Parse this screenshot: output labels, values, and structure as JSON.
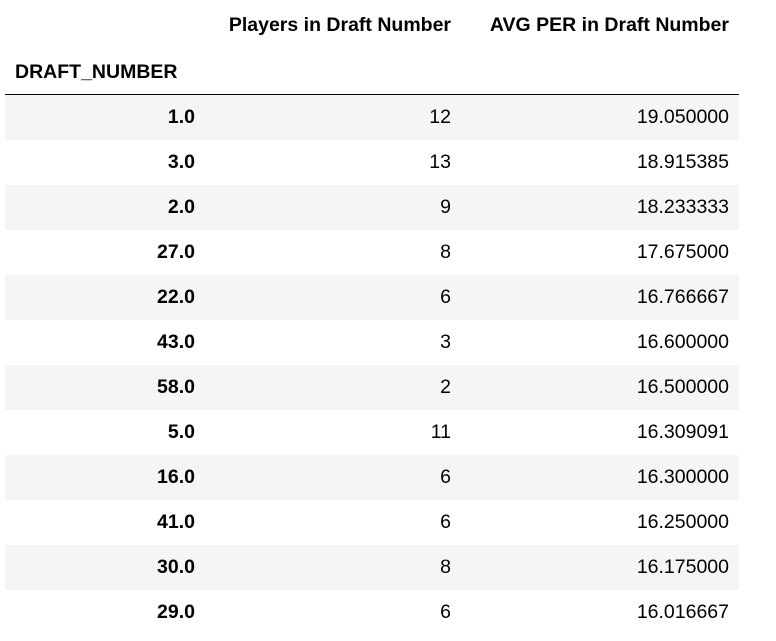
{
  "table": {
    "columns": [
      "Players in Draft Number",
      "AVG PER in Draft Number"
    ],
    "index_name": "DRAFT_NUMBER",
    "rows": [
      {
        "draft_number": "1.0",
        "players": "12",
        "avg_per": "19.050000"
      },
      {
        "draft_number": "3.0",
        "players": "13",
        "avg_per": "18.915385"
      },
      {
        "draft_number": "2.0",
        "players": "9",
        "avg_per": "18.233333"
      },
      {
        "draft_number": "27.0",
        "players": "8",
        "avg_per": "17.675000"
      },
      {
        "draft_number": "22.0",
        "players": "6",
        "avg_per": "16.766667"
      },
      {
        "draft_number": "43.0",
        "players": "3",
        "avg_per": "16.600000"
      },
      {
        "draft_number": "58.0",
        "players": "2",
        "avg_per": "16.500000"
      },
      {
        "draft_number": "5.0",
        "players": "11",
        "avg_per": "16.309091"
      },
      {
        "draft_number": "16.0",
        "players": "6",
        "avg_per": "16.300000"
      },
      {
        "draft_number": "41.0",
        "players": "6",
        "avg_per": "16.250000"
      },
      {
        "draft_number": "30.0",
        "players": "8",
        "avg_per": "16.175000"
      },
      {
        "draft_number": "29.0",
        "players": "6",
        "avg_per": "16.016667"
      }
    ]
  }
}
